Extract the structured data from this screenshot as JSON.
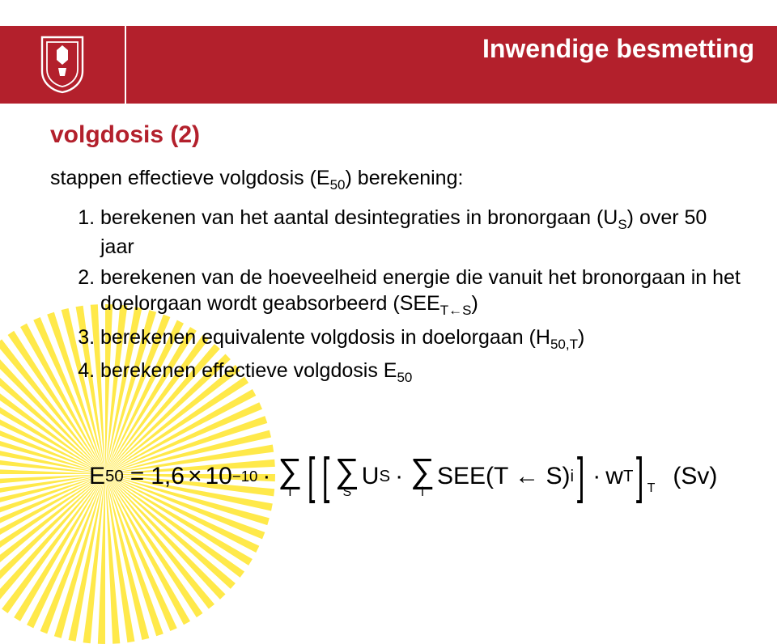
{
  "header": {
    "title": "Inwendige besmetting",
    "background_color": "#b3202c",
    "title_color": "#ffffff",
    "title_fontsize": 32
  },
  "logo": {
    "shield_outer": "#ffffff",
    "shield_inner": "#b3202c"
  },
  "content": {
    "heading": "volgdosis (2)",
    "heading_color": "#b3202c",
    "heading_fontsize": 30,
    "intro": "stappen effectieve volgdosis (E₅₀) berekening:",
    "body_color": "#000000",
    "body_fontsize": 25,
    "steps": [
      "berekenen van het aantal desintegraties in bronorgaan (Uₛ) over 50 jaar",
      "berekenen van de hoeveelheid energie die vanuit het bronorgaan in het doelorgaan wordt geabsorbeerd (SEE_T←S)",
      "berekenen equivalente volgdosis in doelorgaan (H₅₀,T)",
      "berekenen effectieve volgdosis E₅₀"
    ]
  },
  "sunburst": {
    "fill": "#ffe94a",
    "rays": 72
  },
  "equation": {
    "lhs_var": "E",
    "lhs_sub": "50",
    "coeff": "1,6",
    "times": "×",
    "base": "10",
    "exp": "−10",
    "sum1_sub": "T",
    "sum2_sub": "S",
    "U_var": "U",
    "U_sub": "S",
    "sum3_sub": "i",
    "see": "SEE(T ← S)",
    "see_sub": "i",
    "w_var": "w",
    "w_sub": "T",
    "tail_sub": "T",
    "unit": "(Sv)",
    "color": "#000000",
    "fontsize": 30
  }
}
